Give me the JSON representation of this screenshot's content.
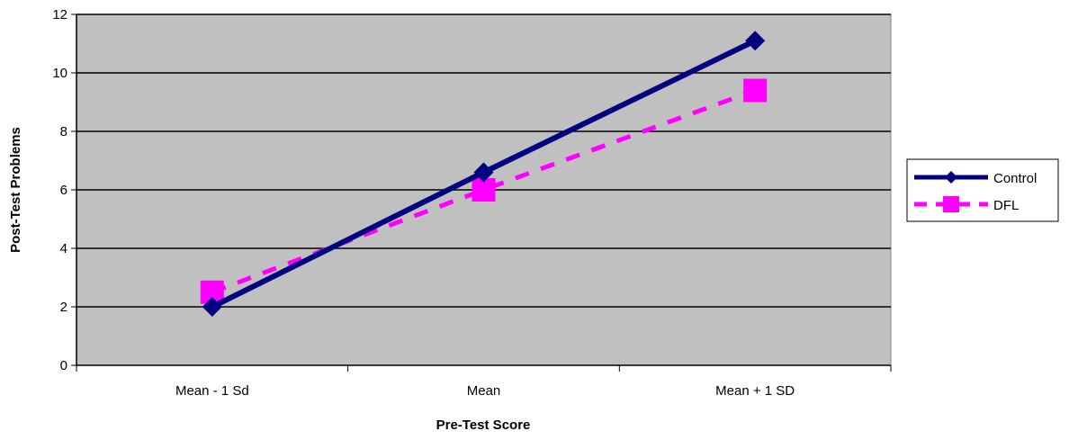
{
  "chart_data": {
    "type": "line",
    "categories": [
      "Mean - 1 Sd",
      "Mean",
      "Mean + 1 SD"
    ],
    "xlabel": "Pre-Test Score",
    "ylabel": "Post-Test Problems",
    "ylim": [
      0,
      12
    ],
    "yticks": [
      0,
      2,
      4,
      6,
      8,
      10,
      12
    ],
    "grid": true,
    "legend_position": "right",
    "plot_background": "#c0c0c0",
    "series": [
      {
        "name": "Control",
        "values": [
          2.0,
          6.6,
          11.1
        ],
        "color": "#000080",
        "marker": "diamond",
        "line_style": "solid"
      },
      {
        "name": "DFL",
        "values": [
          2.5,
          6.0,
          9.4
        ],
        "color": "#ff00ff",
        "marker": "square",
        "line_style": "dashed"
      }
    ]
  }
}
